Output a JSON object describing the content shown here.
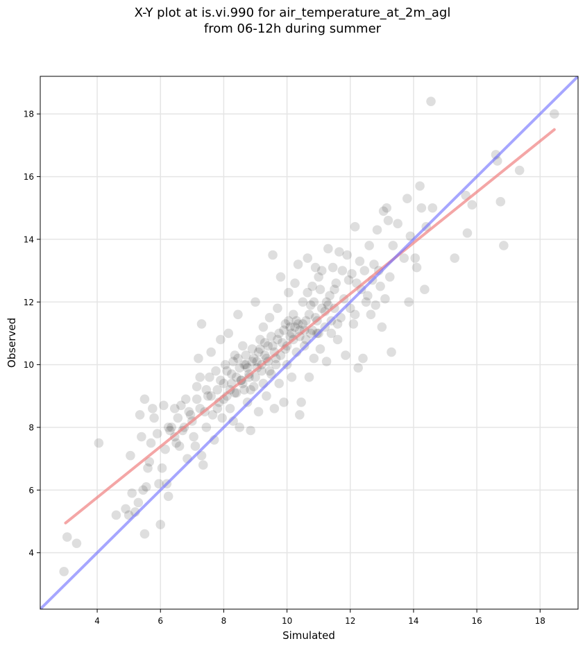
{
  "chart_data": {
    "type": "scatter",
    "title_line1": "X-Y plot at is.vi.990 for air_temperature_at_2m_agl",
    "title_line2": "from 06-12h during summer",
    "xlabel": "Simulated",
    "ylabel": "Observed",
    "xlim": [
      2.2,
      19.2
    ],
    "ylim": [
      2.2,
      19.2
    ],
    "xticks": [
      4,
      6,
      8,
      10,
      12,
      14,
      16,
      18
    ],
    "yticks": [
      4,
      6,
      8,
      10,
      12,
      14,
      16,
      18
    ],
    "grid": true,
    "colors": {
      "points": "#000000",
      "regression": "#f08080",
      "identity": "#6a6aff"
    },
    "regression_line": {
      "x": [
        3.0,
        18.45
      ],
      "y": [
        4.95,
        17.5
      ]
    },
    "identity_line": {
      "x": [
        2.2,
        19.2
      ],
      "y": [
        2.2,
        19.2
      ]
    },
    "points": [
      [
        2.95,
        3.4
      ],
      [
        3.05,
        4.5
      ],
      [
        3.35,
        4.3
      ],
      [
        4.05,
        7.5
      ],
      [
        4.6,
        5.2
      ],
      [
        4.9,
        5.4
      ],
      [
        5.0,
        5.2
      ],
      [
        5.05,
        7.1
      ],
      [
        5.1,
        5.9
      ],
      [
        5.2,
        5.3
      ],
      [
        5.3,
        5.6
      ],
      [
        5.35,
        8.4
      ],
      [
        5.4,
        7.7
      ],
      [
        5.45,
        6.0
      ],
      [
        5.5,
        4.6
      ],
      [
        5.5,
        8.9
      ],
      [
        5.55,
        6.1
      ],
      [
        5.6,
        6.7
      ],
      [
        5.65,
        6.9
      ],
      [
        5.7,
        7.5
      ],
      [
        5.75,
        8.6
      ],
      [
        5.8,
        8.3
      ],
      [
        5.9,
        7.8
      ],
      [
        5.95,
        6.2
      ],
      [
        6.0,
        4.9
      ],
      [
        6.05,
        6.7
      ],
      [
        6.1,
        8.7
      ],
      [
        6.15,
        7.3
      ],
      [
        6.2,
        6.2
      ],
      [
        6.25,
        5.8
      ],
      [
        6.3,
        7.9
      ],
      [
        6.35,
        8.0
      ],
      [
        6.45,
        8.6
      ],
      [
        6.5,
        7.5
      ],
      [
        6.55,
        8.3
      ],
      [
        6.6,
        7.4
      ],
      [
        6.7,
        7.9
      ],
      [
        6.8,
        8.9
      ],
      [
        6.85,
        7.0
      ],
      [
        6.9,
        8.5
      ],
      [
        7.0,
        8.2
      ],
      [
        7.05,
        7.7
      ],
      [
        7.1,
        7.4
      ],
      [
        7.15,
        9.3
      ],
      [
        7.2,
        10.2
      ],
      [
        7.25,
        9.6
      ],
      [
        7.3,
        7.1
      ],
      [
        7.3,
        11.3
      ],
      [
        7.35,
        6.8
      ],
      [
        7.4,
        8.5
      ],
      [
        7.45,
        8.0
      ],
      [
        7.5,
        9.0
      ],
      [
        7.55,
        9.6
      ],
      [
        7.6,
        10.4
      ],
      [
        7.65,
        8.4
      ],
      [
        7.7,
        7.6
      ],
      [
        7.75,
        9.8
      ],
      [
        7.8,
        9.2
      ],
      [
        7.85,
        8.8
      ],
      [
        7.9,
        10.8
      ],
      [
        7.95,
        8.3
      ],
      [
        8.0,
        9.4
      ],
      [
        8.05,
        10.0
      ],
      [
        8.1,
        9.0
      ],
      [
        8.15,
        11.0
      ],
      [
        8.2,
        8.6
      ],
      [
        8.25,
        9.7
      ],
      [
        8.3,
        8.2
      ],
      [
        8.35,
        10.3
      ],
      [
        8.4,
        9.1
      ],
      [
        8.45,
        11.6
      ],
      [
        8.5,
        8.0
      ],
      [
        8.55,
        9.5
      ],
      [
        8.6,
        10.6
      ],
      [
        8.65,
        9.2
      ],
      [
        8.7,
        10.0
      ],
      [
        8.75,
        8.8
      ],
      [
        8.8,
        9.6
      ],
      [
        8.85,
        7.9
      ],
      [
        8.9,
        10.5
      ],
      [
        8.95,
        9.3
      ],
      [
        9.0,
        12.0
      ],
      [
        9.05,
        10.1
      ],
      [
        9.1,
        8.5
      ],
      [
        9.15,
        10.8
      ],
      [
        9.2,
        9.8
      ],
      [
        9.25,
        11.2
      ],
      [
        9.3,
        10.3
      ],
      [
        9.35,
        9.0
      ],
      [
        9.4,
        10.6
      ],
      [
        9.45,
        11.5
      ],
      [
        9.5,
        9.7
      ],
      [
        9.55,
        13.5
      ],
      [
        9.6,
        8.6
      ],
      [
        9.65,
        10.2
      ],
      [
        9.7,
        11.8
      ],
      [
        9.75,
        9.4
      ],
      [
        9.8,
        12.8
      ],
      [
        9.85,
        10.7
      ],
      [
        9.9,
        8.8
      ],
      [
        9.95,
        11.3
      ],
      [
        10.0,
        10.0
      ],
      [
        10.05,
        12.3
      ],
      [
        10.1,
        10.9
      ],
      [
        10.15,
        9.6
      ],
      [
        10.2,
        11.6
      ],
      [
        10.25,
        12.6
      ],
      [
        10.3,
        10.4
      ],
      [
        10.35,
        13.2
      ],
      [
        10.4,
        8.4
      ],
      [
        10.4,
        11.1
      ],
      [
        10.45,
        8.8
      ],
      [
        10.5,
        12.0
      ],
      [
        10.55,
        10.6
      ],
      [
        10.6,
        11.4
      ],
      [
        10.65,
        13.4
      ],
      [
        10.7,
        9.6
      ],
      [
        10.75,
        11.9
      ],
      [
        10.8,
        12.5
      ],
      [
        10.85,
        10.2
      ],
      [
        10.9,
        13.1
      ],
      [
        10.95,
        11.0
      ],
      [
        11.0,
        12.8
      ],
      [
        11.05,
        10.5
      ],
      [
        11.1,
        13.0
      ],
      [
        11.2,
        11.7
      ],
      [
        11.25,
        10.1
      ],
      [
        11.3,
        13.7
      ],
      [
        11.35,
        12.2
      ],
      [
        11.4,
        11.0
      ],
      [
        11.5,
        12.4
      ],
      [
        11.6,
        10.8
      ],
      [
        11.65,
        13.6
      ],
      [
        11.7,
        11.5
      ],
      [
        11.8,
        12.1
      ],
      [
        11.85,
        10.3
      ],
      [
        11.9,
        13.5
      ],
      [
        12.0,
        11.8
      ],
      [
        12.05,
        12.9
      ],
      [
        12.1,
        11.3
      ],
      [
        12.15,
        14.4
      ],
      [
        12.2,
        12.6
      ],
      [
        12.25,
        9.9
      ],
      [
        12.3,
        13.3
      ],
      [
        12.4,
        10.2
      ],
      [
        12.5,
        12.0
      ],
      [
        12.6,
        13.8
      ],
      [
        12.7,
        12.7
      ],
      [
        12.8,
        11.9
      ],
      [
        12.85,
        14.3
      ],
      [
        12.9,
        13.0
      ],
      [
        13.0,
        11.2
      ],
      [
        13.05,
        14.9
      ],
      [
        13.1,
        12.1
      ],
      [
        13.15,
        15.0
      ],
      [
        13.2,
        14.6
      ],
      [
        13.3,
        10.4
      ],
      [
        13.35,
        13.8
      ],
      [
        13.5,
        14.5
      ],
      [
        13.7,
        13.4
      ],
      [
        13.8,
        15.3
      ],
      [
        13.85,
        12.0
      ],
      [
        13.9,
        14.1
      ],
      [
        14.05,
        13.4
      ],
      [
        14.1,
        13.1
      ],
      [
        14.2,
        15.7
      ],
      [
        14.25,
        15.0
      ],
      [
        14.35,
        12.4
      ],
      [
        14.4,
        14.4
      ],
      [
        14.55,
        18.4
      ],
      [
        14.6,
        15.0
      ],
      [
        15.3,
        13.4
      ],
      [
        15.65,
        15.4
      ],
      [
        15.7,
        14.2
      ],
      [
        15.85,
        15.1
      ],
      [
        16.6,
        16.7
      ],
      [
        16.65,
        16.5
      ],
      [
        16.75,
        15.2
      ],
      [
        16.85,
        13.8
      ],
      [
        17.35,
        16.2
      ],
      [
        18.45,
        18.0
      ],
      [
        7.6,
        9.0
      ],
      [
        7.8,
        8.6
      ],
      [
        7.9,
        9.5
      ],
      [
        8.0,
        8.9
      ],
      [
        8.1,
        9.8
      ],
      [
        8.2,
        9.2
      ],
      [
        8.3,
        10.1
      ],
      [
        8.4,
        9.6
      ],
      [
        8.5,
        9.9
      ],
      [
        8.6,
        9.4
      ],
      [
        8.7,
        10.3
      ],
      [
        8.8,
        9.7
      ],
      [
        8.9,
        10.1
      ],
      [
        9.0,
        9.6
      ],
      [
        9.1,
        10.4
      ],
      [
        9.2,
        10.0
      ],
      [
        9.3,
        10.7
      ],
      [
        9.4,
        10.1
      ],
      [
        9.5,
        10.9
      ],
      [
        9.6,
        10.4
      ],
      [
        9.7,
        10.8
      ],
      [
        9.8,
        10.3
      ],
      [
        9.9,
        11.1
      ],
      [
        10.0,
        10.6
      ],
      [
        10.1,
        11.2
      ],
      [
        10.2,
        10.8
      ],
      [
        10.3,
        11.4
      ],
      [
        10.4,
        10.9
      ],
      [
        10.5,
        11.3
      ],
      [
        10.6,
        10.8
      ],
      [
        10.7,
        11.6
      ],
      [
        10.8,
        11.1
      ],
      [
        10.9,
        11.5
      ],
      [
        11.0,
        11.0
      ],
      [
        11.1,
        11.8
      ],
      [
        11.2,
        11.2
      ],
      [
        11.3,
        11.9
      ],
      [
        11.4,
        11.4
      ],
      [
        11.5,
        11.8
      ],
      [
        11.6,
        11.3
      ],
      [
        8.35,
        9.1
      ],
      [
        8.55,
        9.5
      ],
      [
        8.75,
        9.9
      ],
      [
        8.95,
        10.2
      ],
      [
        9.15,
        10.5
      ],
      [
        9.35,
        10.2
      ],
      [
        9.55,
        10.6
      ],
      [
        9.75,
        11.0
      ],
      [
        9.95,
        10.5
      ],
      [
        10.15,
        11.0
      ],
      [
        10.35,
        11.3
      ],
      [
        10.55,
        11.1
      ],
      [
        10.75,
        11.0
      ],
      [
        10.95,
        11.4
      ],
      [
        10.25,
        11.2
      ],
      [
        10.05,
        11.4
      ],
      [
        9.65,
        10.0
      ],
      [
        9.45,
        9.8
      ],
      [
        9.25,
        9.4
      ],
      [
        9.05,
        9.9
      ],
      [
        8.85,
        9.2
      ],
      [
        8.65,
        10.0
      ],
      [
        8.45,
        10.2
      ],
      [
        8.25,
        9.4
      ],
      [
        7.25,
        8.6
      ],
      [
        7.45,
        9.2
      ],
      [
        7.15,
        8.9
      ],
      [
        6.95,
        8.4
      ],
      [
        6.75,
        8.0
      ],
      [
        6.65,
        8.7
      ],
      [
        6.45,
        7.7
      ],
      [
        6.25,
        8.0
      ],
      [
        12.35,
        12.4
      ],
      [
        12.55,
        12.2
      ],
      [
        12.75,
        13.2
      ],
      [
        12.95,
        12.5
      ],
      [
        13.25,
        12.8
      ],
      [
        12.65,
        11.6
      ],
      [
        12.45,
        13.0
      ],
      [
        12.15,
        11.6
      ],
      [
        11.95,
        12.7
      ],
      [
        11.75,
        13.0
      ],
      [
        11.55,
        12.6
      ],
      [
        11.45,
        13.1
      ],
      [
        11.25,
        12.0
      ],
      [
        11.05,
        12.4
      ],
      [
        10.85,
        12.0
      ],
      [
        10.65,
        12.3
      ]
    ]
  }
}
